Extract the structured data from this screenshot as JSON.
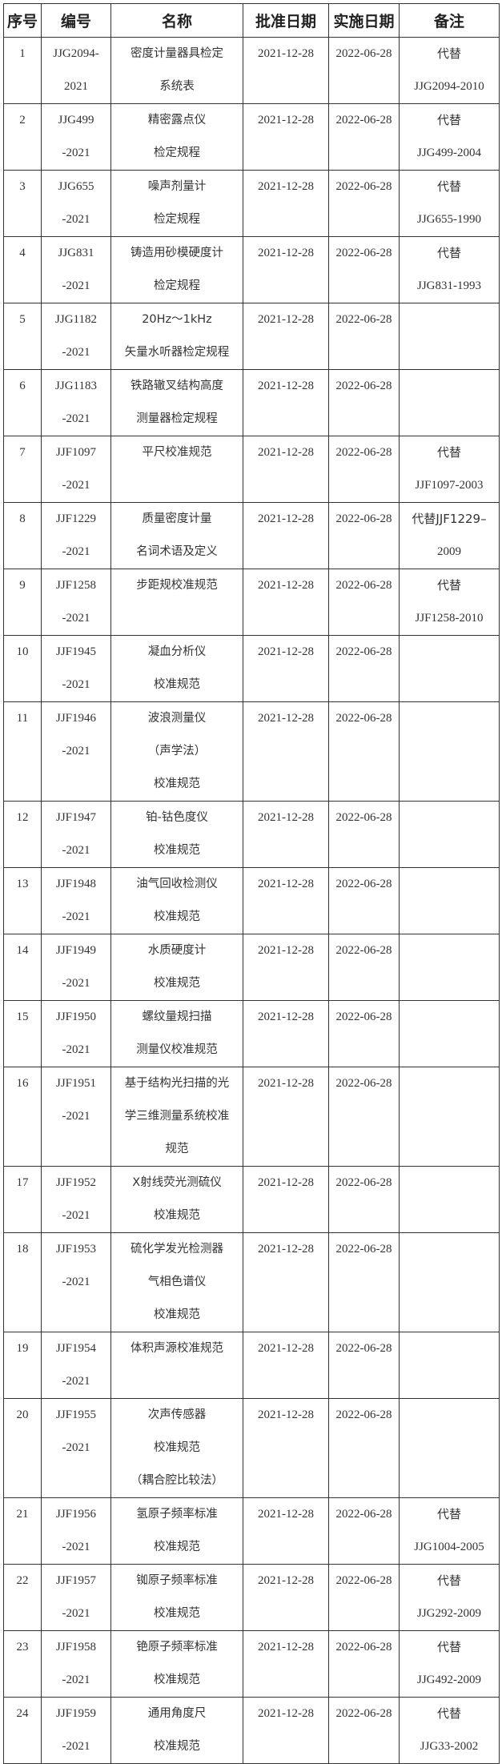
{
  "headers": [
    "序号",
    "编号",
    "名称",
    "批准日期",
    "实施日期",
    "备注"
  ],
  "rows": [
    {
      "no": "1",
      "code": [
        "JJG2094-",
        "2021"
      ],
      "name": [
        "密度计量器具检定",
        "系统表"
      ],
      "approve": "2021-12-28",
      "effective": "2022-06-28",
      "note": [
        "代替",
        "JJG2094-2010"
      ]
    },
    {
      "no": "2",
      "code": [
        "JJG499",
        "-2021"
      ],
      "name": [
        "精密露点仪",
        "检定规程"
      ],
      "approve": "2021-12-28",
      "effective": "2022-06-28",
      "note": [
        "代替",
        "JJG499-2004"
      ]
    },
    {
      "no": "3",
      "code": [
        "JJG655",
        "-2021"
      ],
      "name": [
        "噪声剂量计",
        "检定规程"
      ],
      "approve": "2021-12-28",
      "effective": "2022-06-28",
      "note": [
        "代替",
        "JJG655-1990"
      ]
    },
    {
      "no": "4",
      "code": [
        "JJG831",
        "-2021"
      ],
      "name": [
        "铸造用砂模硬度计",
        "检定规程"
      ],
      "approve": "2021-12-28",
      "effective": "2022-06-28",
      "note": [
        "代替",
        "JJG831-1993"
      ]
    },
    {
      "no": "5",
      "code": [
        "JJG1182",
        "-2021"
      ],
      "name": [
        "20Hz～1kHz",
        "矢量水听器检定规程"
      ],
      "approve": "2021-12-28",
      "effective": "2022-06-28",
      "note": []
    },
    {
      "no": "6",
      "code": [
        "JJG1183",
        "-2021"
      ],
      "name": [
        "铁路辙叉结构高度",
        "测量器检定规程"
      ],
      "approve": "2021-12-28",
      "effective": "2022-06-28",
      "note": []
    },
    {
      "no": "7",
      "code": [
        "JJF1097",
        "-2021"
      ],
      "name": [
        "平尺校准规范"
      ],
      "approve": "2021-12-28",
      "effective": "2022-06-28",
      "note": [
        "代替",
        "JJF1097-2003"
      ]
    },
    {
      "no": "8",
      "code": [
        "JJF1229",
        "-2021"
      ],
      "name": [
        "质量密度计量",
        "名词术语及定义"
      ],
      "approve": "2021-12-28",
      "effective": "2022-06-28",
      "note": [
        "代替JJF1229–",
        "2009"
      ]
    },
    {
      "no": "9",
      "code": [
        "JJF1258",
        "-2021"
      ],
      "name": [
        "步距规校准规范"
      ],
      "approve": "2021-12-28",
      "effective": "2022-06-28",
      "note": [
        "代替",
        "JJF1258-2010"
      ]
    },
    {
      "no": "10",
      "code": [
        "JJF1945",
        "-2021"
      ],
      "name": [
        "凝血分析仪",
        "校准规范"
      ],
      "approve": "2021-12-28",
      "effective": "2022-06-28",
      "note": []
    },
    {
      "no": "11",
      "code": [
        "JJF1946",
        "-2021"
      ],
      "name": [
        "波浪测量仪",
        "（声学法）",
        "校准规范"
      ],
      "approve": "2021-12-28",
      "effective": "2022-06-28",
      "note": []
    },
    {
      "no": "12",
      "code": [
        "JJF1947",
        "-2021"
      ],
      "name": [
        "铂-钴色度仪",
        "校准规范"
      ],
      "approve": "2021-12-28",
      "effective": "2022-06-28",
      "note": []
    },
    {
      "no": "13",
      "code": [
        "JJF1948",
        "-2021"
      ],
      "name": [
        "油气回收检测仪",
        "校准规范"
      ],
      "approve": "2021-12-28",
      "effective": "2022-06-28",
      "note": []
    },
    {
      "no": "14",
      "code": [
        "JJF1949",
        "-2021"
      ],
      "name": [
        "水质硬度计",
        "校准规范"
      ],
      "approve": "2021-12-28",
      "effective": "2022-06-28",
      "note": []
    },
    {
      "no": "15",
      "code": [
        "JJF1950",
        "-2021"
      ],
      "name": [
        "螺纹量规扫描",
        "测量仪校准规范"
      ],
      "approve": "2021-12-28",
      "effective": "2022-06-28",
      "note": []
    },
    {
      "no": "16",
      "code": [
        "JJF1951",
        "-2021"
      ],
      "name": [
        "基于结构光扫描的光",
        "学三维测量系统校准",
        "规范"
      ],
      "approve": "2021-12-28",
      "effective": "2022-06-28",
      "note": []
    },
    {
      "no": "17",
      "code": [
        "JJF1952",
        "-2021"
      ],
      "name": [
        "X射线荧光测硫仪",
        "校准规范"
      ],
      "approve": "2021-12-28",
      "effective": "2022-06-28",
      "note": []
    },
    {
      "no": "18",
      "code": [
        "JJF1953",
        "-2021"
      ],
      "name": [
        "硫化学发光检测器",
        "气相色谱仪",
        "校准规范"
      ],
      "approve": "2021-12-28",
      "effective": "2022-06-28",
      "note": []
    },
    {
      "no": "19",
      "code": [
        "JJF1954",
        "-2021"
      ],
      "name": [
        "体积声源校准规范"
      ],
      "approve": "2021-12-28",
      "effective": "2022-06-28",
      "note": []
    },
    {
      "no": "20",
      "code": [
        "JJF1955",
        "-2021"
      ],
      "name": [
        "次声传感器",
        "校准规范",
        "（耦合腔比较法）"
      ],
      "approve": "2021-12-28",
      "effective": "2022-06-28",
      "note": []
    },
    {
      "no": "21",
      "code": [
        "JJF1956",
        "-2021"
      ],
      "name": [
        "氢原子频率标准",
        "校准规范"
      ],
      "approve": "2021-12-28",
      "effective": "2022-06-28",
      "note": [
        "代替",
        "JJG1004-2005"
      ]
    },
    {
      "no": "22",
      "code": [
        "JJF1957",
        "-2021"
      ],
      "name": [
        "铷原子频率标准",
        "校准规范"
      ],
      "approve": "2021-12-28",
      "effective": "2022-06-28",
      "note": [
        "代替",
        "JJG292-2009"
      ]
    },
    {
      "no": "23",
      "code": [
        "JJF1958",
        "-2021"
      ],
      "name": [
        "铯原子频率标准",
        "校准规范"
      ],
      "approve": "2021-12-28",
      "effective": "2022-06-28",
      "note": [
        "代替",
        "JJG492-2009"
      ]
    },
    {
      "no": "24",
      "code": [
        "JJF1959",
        "-2021"
      ],
      "name": [
        "通用角度尺",
        "校准规范"
      ],
      "approve": "2021-12-28",
      "effective": "2022-06-28",
      "note": [
        "代替",
        "JJG33-2002"
      ]
    }
  ]
}
